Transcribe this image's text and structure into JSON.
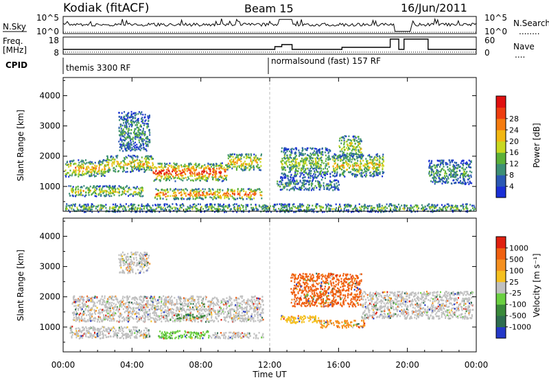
{
  "header": {
    "station": "Kodiak (fitACF)",
    "beam": "Beam 15",
    "date": "16/Jun/2011"
  },
  "top_panels": {
    "nsky_label": "N.Sky",
    "nsearch_label": "N.Search",
    "nsearch_dots": "........",
    "count_top": "10^5",
    "count_bottom": "10^0",
    "freq_label": "Freq.",
    "freq_unit": "[MHz]",
    "freq_ticks": [
      "18",
      "8"
    ],
    "nave_label": "Nave",
    "nave_dots": "....",
    "nave_ticks": [
      "60",
      "0"
    ],
    "cpid_label": "CPID",
    "cpid_segments": [
      {
        "text": "themis 3300 RF",
        "start_hour": 0
      },
      {
        "text": "normalsound (fast) 157 RF",
        "start_hour": 12
      }
    ]
  },
  "chart_data": [
    {
      "type": "heatmap",
      "name": "power",
      "ylabel": "Slant Range [km]",
      "x_hours": [
        0,
        24
      ],
      "ylim": [
        180,
        4600
      ],
      "yticks": [
        1000,
        2000,
        3000,
        4000
      ],
      "colorbar_label": "Power [dB]",
      "colorbar_ticks": [
        "4",
        "8",
        "12",
        "16",
        "20",
        "24",
        "28"
      ],
      "colors": [
        "#1a2fd6",
        "#2a58b4",
        "#3d8f75",
        "#5bb038",
        "#c8d820",
        "#f2b712",
        "#f57c10",
        "#ee3d10",
        "#e01010"
      ],
      "bands": [
        {
          "x": [
            0.1,
            2.5
          ],
          "y": [
            1350,
            1900
          ],
          "level": 0.72
        },
        {
          "x": [
            2.5,
            5.2
          ],
          "y": [
            1500,
            2050
          ],
          "level": 0.65
        },
        {
          "x": [
            5.2,
            9.5
          ],
          "y": [
            1200,
            1800
          ],
          "level": 0.95
        },
        {
          "x": [
            9.5,
            11.5
          ],
          "y": [
            1550,
            2100
          ],
          "level": 0.7
        },
        {
          "x": [
            5.3,
            11.5
          ],
          "y": [
            600,
            950
          ],
          "level": 0.85
        },
        {
          "x": [
            0.3,
            4.6
          ],
          "y": [
            700,
            1050
          ],
          "level": 0.55
        },
        {
          "x": [
            3.2,
            5.0
          ],
          "y": [
            2200,
            3500
          ],
          "level": 0.3
        },
        {
          "x": [
            12.6,
            15.5
          ],
          "y": [
            1300,
            2300
          ],
          "level": 0.45
        },
        {
          "x": [
            15.6,
            18.6
          ],
          "y": [
            1350,
            2100
          ],
          "level": 0.6
        },
        {
          "x": [
            16.0,
            17.3
          ],
          "y": [
            2000,
            2700
          ],
          "level": 0.55
        },
        {
          "x": [
            12.4,
            16.0
          ],
          "y": [
            900,
            1250
          ],
          "level": 0.3
        },
        {
          "x": [
            21.2,
            23.7
          ],
          "y": [
            1100,
            1900
          ],
          "level": 0.3
        },
        {
          "x": [
            0.1,
            23.9
          ],
          "y": [
            180,
            450
          ],
          "level": 0.4
        }
      ]
    },
    {
      "type": "heatmap",
      "name": "velocity",
      "ylabel": "Slant Range [km]",
      "x_hours": [
        0,
        24
      ],
      "ylim": [
        180,
        4600
      ],
      "yticks": [
        1000,
        2000,
        3000,
        4000
      ],
      "colorbar_label": "Velocity [m s⁻¹]",
      "colorbar_ticks": [
        "1000",
        "500",
        "100",
        "25",
        "-25",
        "-100",
        "-500",
        "-1000"
      ],
      "colors": [
        "#2438c8",
        "#2e6d50",
        "#3a8a3a",
        "#6ad040",
        "#c0c0c0",
        "#f5c020",
        "#f59020",
        "#f06010",
        "#e02010"
      ],
      "bands": [
        {
          "x": [
            0.5,
            11.6
          ],
          "y": [
            1200,
            2050
          ],
          "color": 4
        },
        {
          "x": [
            0.3,
            5.0
          ],
          "y": [
            650,
            1050
          ],
          "color": 4
        },
        {
          "x": [
            5.5,
            8.5
          ],
          "y": [
            650,
            900
          ],
          "color": 3
        },
        {
          "x": [
            8.5,
            11.6
          ],
          "y": [
            650,
            850
          ],
          "color": 4
        },
        {
          "x": [
            6.5,
            8.2
          ],
          "y": [
            1300,
            1450
          ],
          "color": 2
        },
        {
          "x": [
            12.6,
            14.8
          ],
          "y": [
            1150,
            1400
          ],
          "color": 5
        },
        {
          "x": [
            14.8,
            17.5
          ],
          "y": [
            1000,
            1250
          ],
          "color": 6
        },
        {
          "x": [
            13.2,
            17.3
          ],
          "y": [
            1700,
            2800
          ],
          "color": 7
        },
        {
          "x": [
            17.3,
            23.8
          ],
          "y": [
            1300,
            2200
          ],
          "color": 4
        },
        {
          "x": [
            3.2,
            5.0
          ],
          "y": [
            2800,
            3500
          ],
          "color": 4
        }
      ]
    }
  ],
  "xaxis": {
    "label": "Time UT",
    "ticks": [
      "00:00",
      "04:00",
      "08:00",
      "12:00",
      "16:00",
      "20:00",
      "00:00"
    ]
  }
}
